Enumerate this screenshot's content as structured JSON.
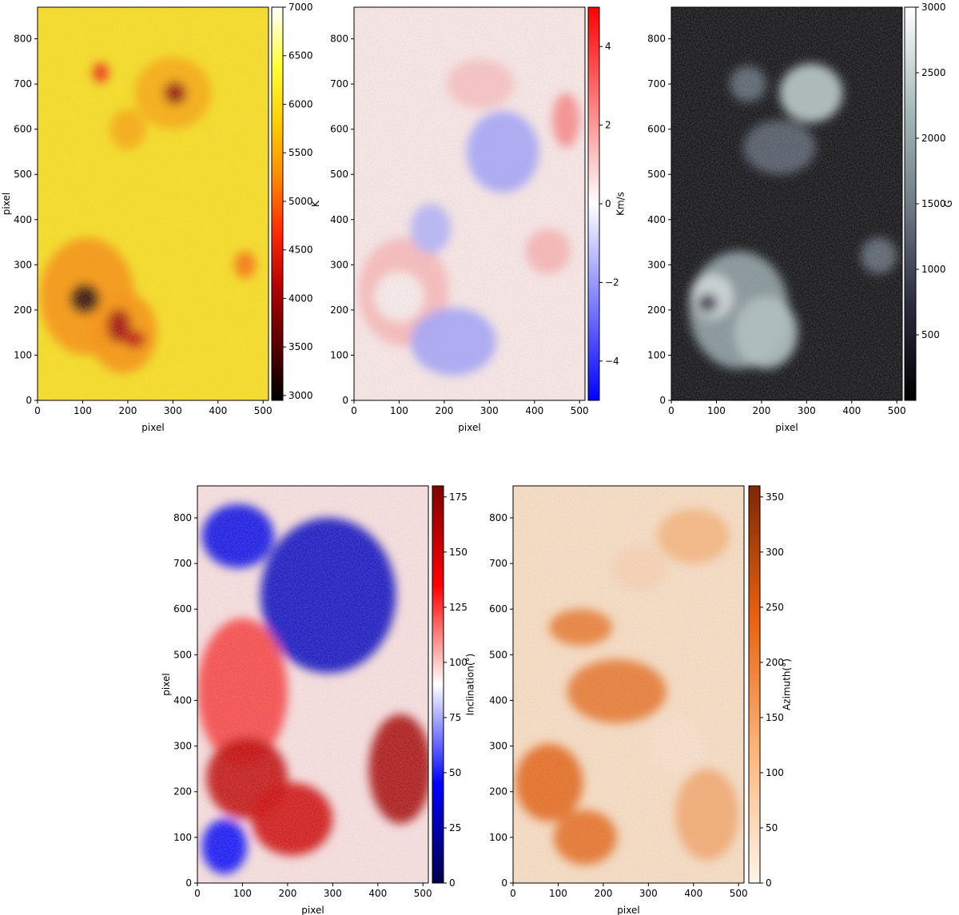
{
  "colors": {
    "temperature_cmap": [
      "#000000",
      "#5a0000",
      "#b40000",
      "#ff2a00",
      "#ff8c00",
      "#ffd200",
      "#ffff3c",
      "#ffffff"
    ],
    "velocity_cmap": [
      "#0000ff",
      "#ffffff",
      "#ff0000"
    ],
    "field_cmap": [
      "#000000",
      "#2c2c40",
      "#6e7c86",
      "#a9bcbc",
      "#ffffff"
    ],
    "inclination_cmap": [
      "#00004c",
      "#0000ff",
      "#ffffff",
      "#ff0000",
      "#7f0000"
    ],
    "azimuth_cmap": [
      "#fff5eb",
      "#fdb57a",
      "#e9620e",
      "#7f2704"
    ]
  },
  "chart_data": [
    {
      "type": "heatmap",
      "quantity": "temperature",
      "xlabel": "pixel",
      "ylabel": "pixel",
      "xlim": [
        0,
        512
      ],
      "ylim": [
        0,
        870
      ],
      "x_ticks": [
        0,
        100,
        200,
        300,
        400,
        500
      ],
      "y_ticks": [
        0,
        100,
        200,
        300,
        400,
        500,
        600,
        700,
        800
      ],
      "colorbar": {
        "label": "K",
        "range": [
          2950,
          7000
        ],
        "ticks": [
          3000,
          3500,
          4000,
          4500,
          5000,
          5500,
          6000,
          6500,
          7000
        ],
        "cmap": "temperature_cmap",
        "placement": "right"
      },
      "features": [
        {
          "x": 110,
          "y": 230,
          "rx": 105,
          "ry": 130,
          "value": 5300
        },
        {
          "x": 190,
          "y": 150,
          "rx": 75,
          "ry": 90,
          "value": 5300
        },
        {
          "x": 300,
          "y": 680,
          "rx": 85,
          "ry": 80,
          "value": 5500
        },
        {
          "x": 105,
          "y": 225,
          "rx": 34,
          "ry": 34,
          "value": 3200
        },
        {
          "x": 180,
          "y": 165,
          "rx": 28,
          "ry": 38,
          "value": 4000
        },
        {
          "x": 215,
          "y": 135,
          "rx": 25,
          "ry": 20,
          "value": 4200
        },
        {
          "x": 305,
          "y": 680,
          "rx": 26,
          "ry": 26,
          "value": 3900
        },
        {
          "x": 140,
          "y": 725,
          "rx": 18,
          "ry": 22,
          "value": 4600
        },
        {
          "x": 460,
          "y": 300,
          "rx": 24,
          "ry": 30,
          "value": 5100
        },
        {
          "x": 200,
          "y": 600,
          "rx": 40,
          "ry": 45,
          "value": 5500
        }
      ]
    },
    {
      "type": "heatmap",
      "quantity": "velocity",
      "xlabel": "pixel",
      "ylabel": "",
      "xlim": [
        0,
        512
      ],
      "ylim": [
        0,
        870
      ],
      "x_ticks": [
        0,
        100,
        200,
        300,
        400,
        500
      ],
      "y_ticks": [
        0,
        100,
        200,
        300,
        400,
        500,
        600,
        700,
        800
      ],
      "colorbar": {
        "label": "Km/s",
        "range": [
          -5,
          5
        ],
        "ticks": [
          -4,
          -2,
          0,
          2,
          4
        ],
        "cmap": "velocity_cmap",
        "placement": "right"
      },
      "features": [
        {
          "x": 110,
          "y": 240,
          "rx": 100,
          "ry": 120,
          "value": 1.4
        },
        {
          "x": 100,
          "y": 230,
          "rx": 55,
          "ry": 55,
          "value": 0.2
        },
        {
          "x": 220,
          "y": 130,
          "rx": 95,
          "ry": 75,
          "value": -1.8
        },
        {
          "x": 280,
          "y": 700,
          "rx": 75,
          "ry": 55,
          "value": 1.2
        },
        {
          "x": 330,
          "y": 550,
          "rx": 80,
          "ry": 90,
          "value": -1.8
        },
        {
          "x": 170,
          "y": 380,
          "rx": 45,
          "ry": 55,
          "value": -1.5
        },
        {
          "x": 430,
          "y": 330,
          "rx": 50,
          "ry": 50,
          "value": 1.5
        },
        {
          "x": 470,
          "y": 620,
          "rx": 30,
          "ry": 60,
          "value": 2.4
        }
      ]
    },
    {
      "type": "heatmap",
      "quantity": "field_strength",
      "xlabel": "pixel",
      "ylabel": "",
      "xlim": [
        0,
        512
      ],
      "ylim": [
        0,
        870
      ],
      "x_ticks": [
        0,
        100,
        200,
        300,
        400,
        500
      ],
      "y_ticks": [
        0,
        100,
        200,
        300,
        400,
        500,
        600,
        700,
        800
      ],
      "colorbar": {
        "label": "G",
        "range": [
          0,
          3000
        ],
        "ticks": [
          500,
          1000,
          1500,
          2000,
          2500,
          3000
        ],
        "cmap": "field_cmap",
        "placement": "right"
      },
      "features": [
        {
          "x": 150,
          "y": 200,
          "rx": 110,
          "ry": 130,
          "value": 1900
        },
        {
          "x": 90,
          "y": 230,
          "rx": 48,
          "ry": 50,
          "value": 2600
        },
        {
          "x": 210,
          "y": 150,
          "rx": 70,
          "ry": 80,
          "value": 2300
        },
        {
          "x": 310,
          "y": 680,
          "rx": 70,
          "ry": 65,
          "value": 2400
        },
        {
          "x": 240,
          "y": 560,
          "rx": 80,
          "ry": 60,
          "value": 1200
        },
        {
          "x": 170,
          "y": 700,
          "rx": 40,
          "ry": 40,
          "value": 1300
        },
        {
          "x": 80,
          "y": 215,
          "rx": 24,
          "ry": 22,
          "value": 800
        },
        {
          "x": 460,
          "y": 320,
          "rx": 40,
          "ry": 40,
          "value": 1300
        }
      ]
    },
    {
      "type": "heatmap",
      "quantity": "inclination",
      "xlabel": "pixel",
      "ylabel": "pixel",
      "xlim": [
        0,
        512
      ],
      "ylim": [
        0,
        870
      ],
      "x_ticks": [
        0,
        100,
        200,
        300,
        400,
        500
      ],
      "y_ticks": [
        0,
        100,
        200,
        300,
        400,
        500,
        600,
        700,
        800
      ],
      "colorbar": {
        "label": "Inclination(°)",
        "range": [
          0,
          180
        ],
        "ticks": [
          0,
          25,
          50,
          75,
          100,
          125,
          150,
          175
        ],
        "cmap": "inclination_cmap",
        "placement": "right"
      },
      "features": [
        {
          "x": 290,
          "y": 630,
          "rx": 150,
          "ry": 170,
          "value": 30
        },
        {
          "x": 100,
          "y": 420,
          "rx": 100,
          "ry": 160,
          "value": 125
        },
        {
          "x": 110,
          "y": 230,
          "rx": 90,
          "ry": 90,
          "value": 155
        },
        {
          "x": 210,
          "y": 140,
          "rx": 90,
          "ry": 80,
          "value": 150
        },
        {
          "x": 450,
          "y": 250,
          "rx": 70,
          "ry": 120,
          "value": 165
        },
        {
          "x": 60,
          "y": 80,
          "rx": 50,
          "ry": 60,
          "value": 45
        },
        {
          "x": 90,
          "y": 760,
          "rx": 80,
          "ry": 70,
          "value": 40
        }
      ]
    },
    {
      "type": "heatmap",
      "quantity": "azimuth",
      "xlabel": "pixel",
      "ylabel": "",
      "xlim": [
        0,
        512
      ],
      "ylim": [
        0,
        870
      ],
      "x_ticks": [
        0,
        100,
        200,
        300,
        400,
        500
      ],
      "y_ticks": [
        0,
        100,
        200,
        300,
        400,
        500,
        600,
        700,
        800
      ],
      "colorbar": {
        "label": "Azimuth(°)",
        "range": [
          0,
          360
        ],
        "ticks": [
          0,
          50,
          100,
          150,
          200,
          250,
          300,
          350
        ],
        "cmap": "azimuth_cmap",
        "placement": "right"
      },
      "features": [
        {
          "x": 80,
          "y": 220,
          "rx": 75,
          "ry": 85,
          "value": 240
        },
        {
          "x": 160,
          "y": 100,
          "rx": 70,
          "ry": 60,
          "value": 230
        },
        {
          "x": 280,
          "y": 690,
          "rx": 60,
          "ry": 50,
          "value": 60
        },
        {
          "x": 230,
          "y": 420,
          "rx": 110,
          "ry": 70,
          "value": 215
        },
        {
          "x": 150,
          "y": 560,
          "rx": 70,
          "ry": 40,
          "value": 210
        },
        {
          "x": 430,
          "y": 150,
          "rx": 70,
          "ry": 100,
          "value": 140
        },
        {
          "x": 400,
          "y": 760,
          "rx": 80,
          "ry": 60,
          "value": 120
        },
        {
          "x": 360,
          "y": 300,
          "rx": 60,
          "ry": 60,
          "value": 30
        }
      ]
    }
  ]
}
